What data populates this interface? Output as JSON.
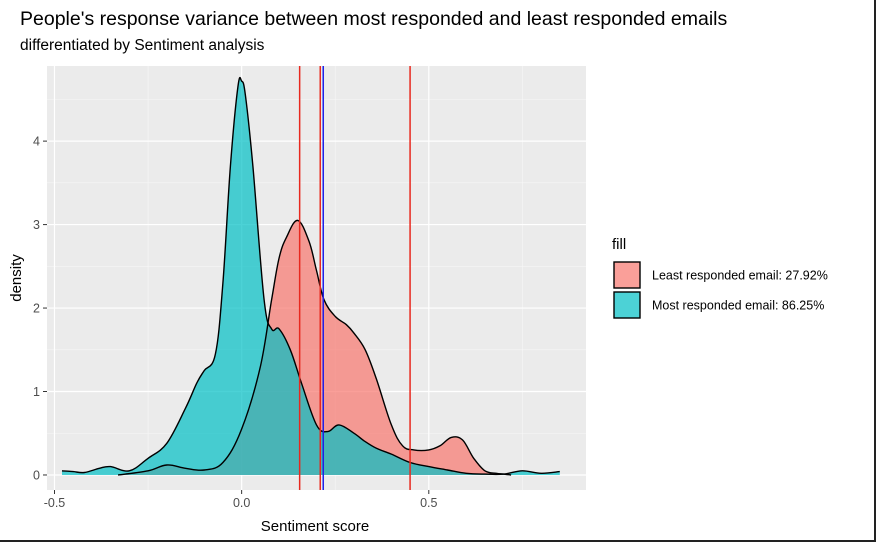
{
  "chart_data": {
    "type": "area",
    "title": "People's response variance between most responded and least responded emails",
    "subtitle": "differentiated by Sentiment analysis",
    "xlabel": "Sentiment score",
    "ylabel": "density",
    "xlim": [
      -0.52,
      0.92
    ],
    "ylim": [
      -0.18,
      4.9
    ],
    "x_ticks": [
      -0.5,
      0.0,
      0.5
    ],
    "x_tick_labels": [
      "-0.5",
      "0.0",
      "0.5"
    ],
    "y_ticks": [
      0,
      1,
      2,
      3,
      4
    ],
    "y_tick_labels": [
      "0",
      "1",
      "2",
      "3",
      "4"
    ],
    "grid": true,
    "legend": {
      "title": "fill",
      "placement": "right"
    },
    "series": [
      {
        "name": "Least responded email: 27.92%",
        "color": "#F8766D",
        "x": [
          -0.33,
          -0.25,
          -0.2,
          -0.15,
          -0.1,
          -0.05,
          0.0,
          0.05,
          0.08,
          0.1,
          0.12,
          0.15,
          0.18,
          0.2,
          0.22,
          0.25,
          0.28,
          0.3,
          0.33,
          0.36,
          0.4,
          0.43,
          0.46,
          0.5,
          0.53,
          0.56,
          0.59,
          0.62,
          0.65,
          0.68,
          0.7,
          0.72
        ],
        "y": [
          0.0,
          0.05,
          0.12,
          0.08,
          0.06,
          0.15,
          0.55,
          1.3,
          2.1,
          2.6,
          2.85,
          3.05,
          2.8,
          2.45,
          2.1,
          1.9,
          1.8,
          1.7,
          1.5,
          1.15,
          0.6,
          0.35,
          0.3,
          0.3,
          0.35,
          0.45,
          0.42,
          0.2,
          0.05,
          0.02,
          0.01,
          0.0
        ]
      },
      {
        "name": "Most responded email: 86.25%",
        "color": "#00BFC4",
        "x": [
          -0.48,
          -0.45,
          -0.42,
          -0.38,
          -0.35,
          -0.3,
          -0.25,
          -0.2,
          -0.15,
          -0.12,
          -0.1,
          -0.07,
          -0.05,
          -0.03,
          -0.01,
          0.0,
          0.01,
          0.03,
          0.06,
          0.08,
          0.1,
          0.13,
          0.16,
          0.2,
          0.23,
          0.26,
          0.3,
          0.33,
          0.36,
          0.4,
          0.45,
          0.5,
          0.55,
          0.6,
          0.65,
          0.7,
          0.75,
          0.8,
          0.85
        ],
        "y": [
          0.05,
          0.04,
          0.03,
          0.08,
          0.1,
          0.05,
          0.2,
          0.38,
          0.8,
          1.1,
          1.25,
          1.45,
          2.3,
          3.7,
          4.65,
          4.72,
          4.55,
          3.7,
          2.1,
          1.75,
          1.75,
          1.5,
          1.1,
          0.6,
          0.52,
          0.6,
          0.5,
          0.4,
          0.32,
          0.25,
          0.15,
          0.1,
          0.06,
          0.02,
          0.01,
          0.01,
          0.05,
          0.02,
          0.04
        ]
      }
    ],
    "vertical_lines": [
      {
        "x": 0.155,
        "color": "#E8281E"
      },
      {
        "x": 0.21,
        "color": "#E8281E"
      },
      {
        "x": 0.218,
        "color": "#1E1EE8"
      },
      {
        "x": 0.45,
        "color": "#E8281E"
      }
    ]
  }
}
